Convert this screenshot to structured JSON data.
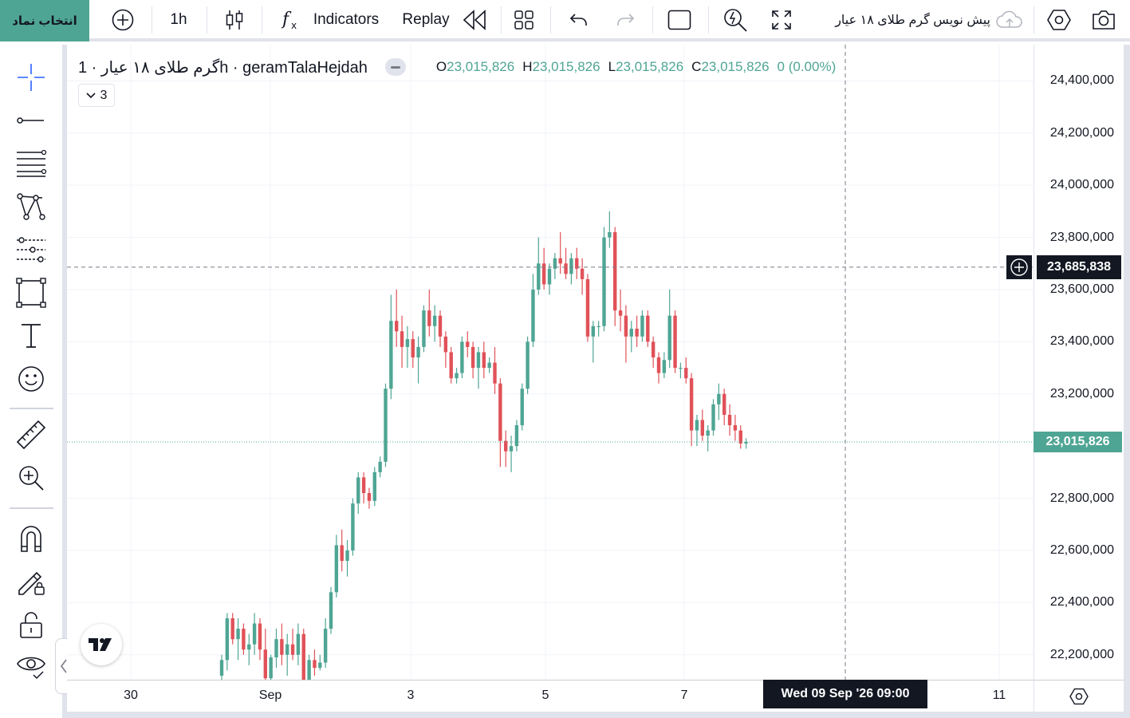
{
  "toolbar": {
    "symbol_button": "انتخاب نماد",
    "interval": "1h",
    "indicators_label": "Indicators",
    "replay_label": "Replay",
    "page_title": "پیش نویس گرم طلای ۱۸ عیار",
    "icons": [
      "plus-circle-icon",
      "candles-icon",
      "fx-icon",
      "replay-icon",
      "layout-grid-icon",
      "undo-icon",
      "redo-icon",
      "rectangle-icon",
      "quick-search-icon",
      "fullscreen-icon",
      "cloud-upload-icon",
      "settings-icon",
      "camera-icon"
    ]
  },
  "left_tools": [
    "crosshair-icon",
    "trend-line-icon",
    "fib-lines-icon",
    "pattern-icon",
    "prediction-icon",
    "rectangle-shape-icon",
    "text-icon",
    "emoji-icon",
    "ruler-icon",
    "zoom-in-icon",
    "magnet-icon",
    "pencil-lock-icon",
    "unlock-icon",
    "eye-icon"
  ],
  "legend": {
    "title": "گرم طلای ۱۸ عیار · 1h · geramTalaHejdah",
    "open_label": "O",
    "open": "23,015,826",
    "high_label": "H",
    "high": "23,015,826",
    "low_label": "L",
    "low": "23,015,826",
    "close_label": "C",
    "close": "23,015,826",
    "change": "0 (0.00%)",
    "indicators_count": "3"
  },
  "price_axis": {
    "labels": [
      "24,400,000",
      "24,200,000",
      "24,000,000",
      "23,800,000",
      "23,600,000",
      "23,400,000",
      "23,200,000",
      "22,800,000",
      "22,600,000",
      "22,400,000",
      "22,200,000"
    ],
    "current_price": "23,015,826",
    "crosshair_price": "23,685,838"
  },
  "time_axis": {
    "labels": [
      "30",
      "Sep",
      "3",
      "5",
      "7",
      "11"
    ],
    "crosshair_time": "Wed 09 Sep '26   09:00"
  },
  "colors": {
    "up": "#4fa594",
    "down": "#e05258",
    "accent": "#4fa594",
    "crosshair": "#131722"
  },
  "chart_data": {
    "type": "candlestick",
    "symbol": "geramTalaHejdah",
    "interval": "1h",
    "ylim": [
      22080000,
      24500000
    ],
    "candles": [
      [
        22120000,
        22200000,
        22080000,
        22180000
      ],
      [
        22180000,
        22360000,
        22140000,
        22340000
      ],
      [
        22340000,
        22360000,
        22240000,
        22260000
      ],
      [
        22260000,
        22340000,
        22180000,
        22300000
      ],
      [
        22300000,
        22320000,
        22200000,
        22220000
      ],
      [
        22220000,
        22280000,
        22160000,
        22240000
      ],
      [
        22240000,
        22360000,
        22200000,
        22320000
      ],
      [
        22320000,
        22340000,
        22180000,
        22220000
      ],
      [
        22220000,
        22300000,
        22100000,
        22110000
      ],
      [
        22110000,
        22200000,
        22080000,
        22190000
      ],
      [
        22190000,
        22300000,
        22150000,
        22260000
      ],
      [
        22260000,
        22320000,
        22160000,
        22200000
      ],
      [
        22200000,
        22280000,
        22120000,
        22240000
      ],
      [
        22240000,
        22300000,
        22180000,
        22200000
      ],
      [
        22200000,
        22320000,
        22160000,
        22280000
      ],
      [
        22280000,
        22300000,
        22080000,
        22100000
      ],
      [
        22100000,
        22200000,
        22080000,
        22180000
      ],
      [
        22180000,
        22220000,
        22120000,
        22150000
      ],
      [
        22150000,
        22200000,
        22140000,
        22170000
      ],
      [
        22170000,
        22340000,
        22150000,
        22300000
      ],
      [
        22300000,
        22460000,
        22280000,
        22440000
      ],
      [
        22440000,
        22660000,
        22420000,
        22620000
      ],
      [
        22620000,
        22680000,
        22520000,
        22560000
      ],
      [
        22560000,
        22640000,
        22500000,
        22600000
      ],
      [
        22600000,
        22800000,
        22580000,
        22780000
      ],
      [
        22780000,
        22900000,
        22740000,
        22880000
      ],
      [
        22880000,
        22900000,
        22780000,
        22820000
      ],
      [
        22820000,
        22840000,
        22760000,
        22790000
      ],
      [
        22790000,
        22920000,
        22770000,
        22900000
      ],
      [
        22900000,
        22960000,
        22880000,
        22940000
      ],
      [
        22940000,
        23240000,
        22920000,
        23220000
      ],
      [
        23220000,
        23580000,
        23180000,
        23480000
      ],
      [
        23480000,
        23600000,
        23380000,
        23440000
      ],
      [
        23440000,
        23500000,
        23300000,
        23380000
      ],
      [
        23380000,
        23460000,
        23300000,
        23410000
      ],
      [
        23410000,
        23440000,
        23300000,
        23340000
      ],
      [
        23340000,
        23420000,
        23240000,
        23380000
      ],
      [
        23380000,
        23540000,
        23360000,
        23520000
      ],
      [
        23520000,
        23600000,
        23420000,
        23460000
      ],
      [
        23460000,
        23540000,
        23400000,
        23500000
      ],
      [
        23500000,
        23520000,
        23380000,
        23420000
      ],
      [
        23420000,
        23440000,
        23300000,
        23360000
      ],
      [
        23360000,
        23380000,
        23240000,
        23260000
      ],
      [
        23260000,
        23300000,
        23240000,
        23280000
      ],
      [
        23280000,
        23420000,
        23260000,
        23400000
      ],
      [
        23400000,
        23440000,
        23340000,
        23380000
      ],
      [
        23380000,
        23400000,
        23260000,
        23300000
      ],
      [
        23300000,
        23380000,
        23220000,
        23360000
      ],
      [
        23360000,
        23400000,
        23260000,
        23300000
      ],
      [
        23300000,
        23340000,
        23280000,
        23320000
      ],
      [
        23320000,
        23380000,
        23200000,
        23240000
      ],
      [
        23240000,
        23260000,
        22920000,
        23020000
      ],
      [
        23020000,
        23060000,
        22920000,
        22980000
      ],
      [
        22980000,
        23040000,
        22900000,
        23000000
      ],
      [
        23000000,
        23100000,
        22980000,
        23080000
      ],
      [
        23080000,
        23240000,
        23060000,
        23220000
      ],
      [
        23220000,
        23420000,
        23200000,
        23400000
      ],
      [
        23400000,
        23660000,
        23380000,
        23600000
      ],
      [
        23600000,
        23800000,
        23580000,
        23700000
      ],
      [
        23700000,
        23760000,
        23600000,
        23620000
      ],
      [
        23620000,
        23700000,
        23580000,
        23680000
      ],
      [
        23680000,
        23740000,
        23640000,
        23720000
      ],
      [
        23720000,
        23820000,
        23660000,
        23700000
      ],
      [
        23700000,
        23760000,
        23640000,
        23660000
      ],
      [
        23660000,
        23740000,
        23620000,
        23720000
      ],
      [
        23720000,
        23760000,
        23640000,
        23680000
      ],
      [
        23680000,
        23720000,
        23580000,
        23640000
      ],
      [
        23640000,
        23660000,
        23400000,
        23420000
      ],
      [
        23420000,
        23480000,
        23320000,
        23460000
      ],
      [
        23460000,
        23480000,
        23420000,
        23460000
      ],
      [
        23460000,
        23840000,
        23440000,
        23800000
      ],
      [
        23800000,
        23900000,
        23760000,
        23820000
      ],
      [
        23820000,
        23840000,
        23460000,
        23520000
      ],
      [
        23520000,
        23600000,
        23440000,
        23500000
      ],
      [
        23500000,
        23540000,
        23320000,
        23420000
      ],
      [
        23420000,
        23480000,
        23360000,
        23450000
      ],
      [
        23450000,
        23500000,
        23380000,
        23420000
      ],
      [
        23420000,
        23520000,
        23400000,
        23500000
      ],
      [
        23500000,
        23520000,
        23380000,
        23400000
      ],
      [
        23400000,
        23420000,
        23300000,
        23340000
      ],
      [
        23340000,
        23360000,
        23240000,
        23280000
      ],
      [
        23280000,
        23360000,
        23260000,
        23330000
      ],
      [
        23330000,
        23600000,
        23300000,
        23500000
      ],
      [
        23500000,
        23520000,
        23280000,
        23300000
      ],
      [
        23300000,
        23320000,
        23260000,
        23300000
      ],
      [
        23300000,
        23340000,
        23240000,
        23260000
      ],
      [
        23260000,
        23280000,
        23000000,
        23060000
      ],
      [
        23060000,
        23120000,
        23000000,
        23100000
      ],
      [
        23100000,
        23140000,
        23020000,
        23040000
      ],
      [
        23040000,
        23080000,
        22980000,
        23060000
      ],
      [
        23060000,
        23180000,
        23040000,
        23160000
      ],
      [
        23160000,
        23240000,
        23100000,
        23200000
      ],
      [
        23200000,
        23220000,
        23080000,
        23120000
      ],
      [
        23120000,
        23160000,
        23040000,
        23080000
      ],
      [
        23080000,
        23120000,
        23020000,
        23060000
      ],
      [
        23060000,
        23080000,
        22990000,
        23010000
      ],
      [
        23010000,
        23030000,
        22990000,
        23015826
      ]
    ]
  }
}
